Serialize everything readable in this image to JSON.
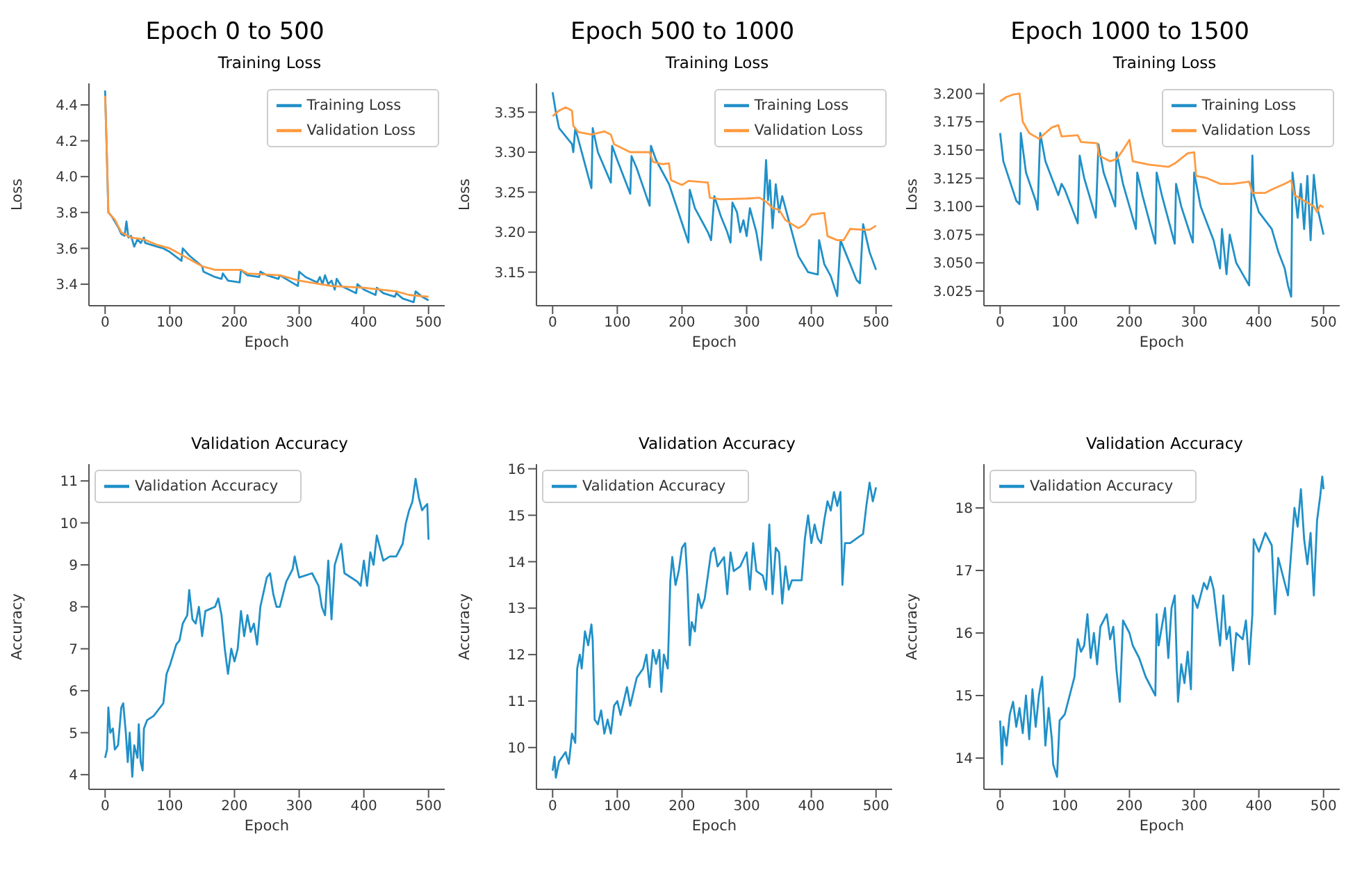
{
  "chart_data": [
    {
      "type": "line",
      "title": "Epoch 0 to 500",
      "subtitle": "Training Loss",
      "xlabel": "Epoch",
      "ylabel": "Loss",
      "xlim": [
        -25,
        525
      ],
      "xticks": [
        0,
        100,
        200,
        300,
        400,
        500
      ],
      "ylim": [
        3.28,
        4.52
      ],
      "yticks": [
        3.4,
        3.6,
        3.8,
        {
          "value": 4.0,
          "label": "4.0"
        },
        4.2,
        4.4
      ],
      "legend": "top right",
      "series": [
        {
          "name": "Training Loss",
          "color": "#2090c8",
          "x": [
            0,
            5,
            10,
            15,
            20,
            25,
            30,
            33,
            36,
            40,
            45,
            50,
            55,
            60,
            62,
            80,
            90,
            100,
            118,
            120,
            130,
            150,
            152,
            170,
            180,
            182,
            190,
            208,
            210,
            220,
            238,
            240,
            250,
            268,
            270,
            298,
            300,
            310,
            328,
            332,
            336,
            340,
            345,
            350,
            355,
            358,
            365,
            388,
            390,
            400,
            418,
            420,
            430,
            448,
            450,
            460,
            477,
            480,
            490,
            500
          ],
          "values": [
            4.48,
            3.8,
            3.78,
            3.75,
            3.72,
            3.68,
            3.67,
            3.75,
            3.66,
            3.67,
            3.61,
            3.65,
            3.63,
            3.66,
            3.63,
            3.61,
            3.6,
            3.58,
            3.53,
            3.6,
            3.56,
            3.5,
            3.47,
            3.44,
            3.43,
            3.46,
            3.42,
            3.41,
            3.48,
            3.45,
            3.44,
            3.47,
            3.45,
            3.43,
            3.45,
            3.39,
            3.47,
            3.44,
            3.41,
            3.44,
            3.4,
            3.45,
            3.4,
            3.42,
            3.37,
            3.43,
            3.39,
            3.35,
            3.4,
            3.37,
            3.34,
            3.38,
            3.35,
            3.33,
            3.35,
            3.32,
            3.3,
            3.36,
            3.33,
            3.31
          ]
        },
        {
          "name": "Validation Loss",
          "color": "#ff9a40",
          "x": [
            0,
            3,
            5,
            15,
            25,
            40,
            60,
            80,
            100,
            150,
            170,
            210,
            220,
            270,
            300,
            350,
            400,
            450,
            470,
            500
          ],
          "values": [
            4.45,
            4.1,
            3.8,
            3.76,
            3.69,
            3.66,
            3.65,
            3.62,
            3.6,
            3.5,
            3.48,
            3.48,
            3.46,
            3.45,
            3.42,
            3.39,
            3.38,
            3.36,
            3.34,
            3.33
          ]
        }
      ]
    },
    {
      "type": "line",
      "title": "Epoch 500 to 1000",
      "subtitle": "Training Loss",
      "xlabel": "Epoch",
      "ylabel": "Loss",
      "xlim": [
        -25,
        525
      ],
      "xticks": [
        0,
        100,
        200,
        300,
        400,
        500
      ],
      "ylim": [
        3.108,
        3.386
      ],
      "yticks": [
        3.15,
        {
          "value": 3.2,
          "label": "3.20"
        },
        3.25,
        {
          "value": 3.3,
          "label": "3.30"
        },
        3.35
      ],
      "legend": "top right",
      "series": [
        {
          "name": "Training Loss",
          "color": "#2090c8",
          "x": [
            0,
            5,
            10,
            20,
            30,
            32,
            35,
            60,
            62,
            70,
            90,
            92,
            100,
            120,
            122,
            130,
            150,
            152,
            160,
            180,
            210,
            212,
            220,
            240,
            245,
            250,
            260,
            270,
            275,
            278,
            285,
            290,
            295,
            300,
            305,
            315,
            322,
            325,
            330,
            333,
            336,
            340,
            345,
            350,
            355,
            380,
            395,
            410,
            412,
            420,
            430,
            440,
            445,
            455,
            470,
            475,
            480,
            490,
            500
          ],
          "values": [
            3.375,
            3.35,
            3.33,
            3.32,
            3.31,
            3.3,
            3.33,
            3.255,
            3.33,
            3.3,
            3.262,
            3.308,
            3.29,
            3.248,
            3.295,
            3.28,
            3.233,
            3.308,
            3.29,
            3.26,
            3.187,
            3.253,
            3.23,
            3.2,
            3.19,
            3.245,
            3.22,
            3.2,
            3.187,
            3.237,
            3.225,
            3.2,
            3.215,
            3.195,
            3.23,
            3.2,
            3.165,
            3.21,
            3.29,
            3.24,
            3.265,
            3.205,
            3.26,
            3.225,
            3.245,
            3.17,
            3.15,
            3.147,
            3.19,
            3.16,
            3.145,
            3.12,
            3.19,
            3.17,
            3.14,
            3.136,
            3.21,
            3.175,
            3.153
          ]
        },
        {
          "name": "Validation Loss",
          "color": "#ff9a40",
          "x": [
            0,
            10,
            20,
            30,
            32,
            40,
            60,
            80,
            90,
            95,
            120,
            150,
            155,
            170,
            180,
            183,
            200,
            210,
            240,
            243,
            260,
            300,
            320,
            330,
            340,
            350,
            360,
            380,
            390,
            400,
            420,
            425,
            440,
            450,
            460,
            480,
            490,
            500
          ],
          "values": [
            3.345,
            3.352,
            3.356,
            3.352,
            3.333,
            3.325,
            3.322,
            3.326,
            3.322,
            3.31,
            3.3,
            3.3,
            3.288,
            3.285,
            3.286,
            3.265,
            3.259,
            3.264,
            3.262,
            3.243,
            3.241,
            3.242,
            3.243,
            3.238,
            3.23,
            3.228,
            3.215,
            3.205,
            3.21,
            3.222,
            3.224,
            3.195,
            3.19,
            3.19,
            3.204,
            3.203,
            3.203,
            3.208
          ]
        }
      ]
    },
    {
      "type": "line",
      "title": "Epoch 1000 to 1500",
      "subtitle": "Training Loss",
      "xlabel": "Epoch",
      "ylabel": "Loss",
      "xlim": [
        -25,
        525
      ],
      "xticks": [
        0,
        100,
        200,
        300,
        400,
        500
      ],
      "ylim": [
        3.012,
        3.209
      ],
      "yticks": [
        3.025,
        {
          "value": 3.05,
          "label": "3.050"
        },
        3.075,
        {
          "value": 3.1,
          "label": "3.100"
        },
        3.125,
        {
          "value": 3.15,
          "label": "3.150"
        },
        3.175,
        {
          "value": 3.2,
          "label": "3.200"
        }
      ],
      "legend": "top right",
      "series": [
        {
          "name": "Training Loss",
          "color": "#2090c8",
          "x": [
            0,
            5,
            25,
            30,
            32,
            40,
            55,
            58,
            62,
            70,
            90,
            95,
            100,
            120,
            123,
            130,
            148,
            152,
            160,
            178,
            180,
            190,
            210,
            212,
            220,
            240,
            242,
            250,
            270,
            272,
            280,
            298,
            300,
            310,
            320,
            330,
            340,
            343,
            350,
            355,
            365,
            380,
            385,
            390,
            392,
            400,
            420,
            430,
            440,
            445,
            450,
            452,
            460,
            465,
            470,
            475,
            480,
            485,
            490,
            500
          ],
          "values": [
            3.165,
            3.14,
            3.105,
            3.102,
            3.165,
            3.13,
            3.105,
            3.097,
            3.165,
            3.14,
            3.11,
            3.12,
            3.115,
            3.085,
            3.145,
            3.125,
            3.09,
            3.155,
            3.13,
            3.1,
            3.148,
            3.12,
            3.08,
            3.13,
            3.11,
            3.067,
            3.13,
            3.11,
            3.067,
            3.12,
            3.1,
            3.068,
            3.13,
            3.1,
            3.085,
            3.07,
            3.045,
            3.08,
            3.04,
            3.075,
            3.05,
            3.035,
            3.03,
            3.145,
            3.11,
            3.095,
            3.08,
            3.06,
            3.045,
            3.03,
            3.02,
            3.13,
            3.09,
            3.12,
            3.08,
            3.127,
            3.07,
            3.128,
            3.1,
            3.075
          ]
        },
        {
          "name": "Validation Loss",
          "color": "#ff9a40",
          "x": [
            0,
            10,
            20,
            30,
            35,
            45,
            60,
            70,
            80,
            90,
            95,
            120,
            125,
            150,
            153,
            170,
            180,
            190,
            200,
            205,
            230,
            260,
            270,
            290,
            300,
            303,
            320,
            340,
            360,
            385,
            390,
            410,
            420,
            440,
            450,
            455,
            470,
            485,
            490,
            495,
            500
          ],
          "values": [
            3.193,
            3.197,
            3.199,
            3.2,
            3.175,
            3.165,
            3.16,
            3.165,
            3.17,
            3.172,
            3.162,
            3.163,
            3.157,
            3.156,
            3.145,
            3.14,
            3.142,
            3.15,
            3.159,
            3.14,
            3.137,
            3.135,
            3.138,
            3.147,
            3.148,
            3.127,
            3.125,
            3.12,
            3.12,
            3.122,
            3.112,
            3.112,
            3.115,
            3.12,
            3.123,
            3.11,
            3.105,
            3.1,
            3.095,
            3.101,
            3.099
          ]
        }
      ]
    },
    {
      "type": "line",
      "title": "Validation Accuracy",
      "xlabel": "Epoch",
      "ylabel": "Accuracy",
      "xlim": [
        -25,
        525
      ],
      "xticks": [
        0,
        100,
        200,
        300,
        400,
        500
      ],
      "ylim": [
        3.65,
        11.4
      ],
      "yticks": [
        4,
        5,
        6,
        7,
        8,
        9,
        10,
        11
      ],
      "legend": "top left",
      "series": [
        {
          "name": "Validation Accuracy",
          "color": "#2090c8",
          "x": [
            0,
            3,
            5,
            8,
            12,
            15,
            20,
            25,
            28,
            32,
            35,
            38,
            42,
            45,
            50,
            52,
            55,
            58,
            60,
            65,
            75,
            85,
            90,
            95,
            100,
            110,
            115,
            120,
            127,
            130,
            135,
            140,
            145,
            150,
            155,
            170,
            175,
            180,
            185,
            190,
            195,
            200,
            205,
            210,
            215,
            220,
            225,
            230,
            235,
            240,
            250,
            255,
            260,
            265,
            270,
            280,
            290,
            293,
            300,
            320,
            330,
            335,
            340,
            345,
            350,
            355,
            365,
            370,
            380,
            390,
            395,
            400,
            405,
            410,
            415,
            420,
            430,
            440,
            450,
            460,
            465,
            470,
            475,
            480,
            485,
            490,
            495,
            498,
            500
          ],
          "values": [
            4.4,
            4.6,
            5.6,
            5.0,
            5.1,
            4.6,
            4.7,
            5.6,
            5.7,
            5.0,
            4.3,
            5.0,
            3.95,
            4.7,
            4.4,
            5.2,
            4.3,
            4.1,
            5.1,
            5.3,
            5.4,
            5.6,
            5.7,
            6.4,
            6.6,
            7.1,
            7.2,
            7.6,
            7.8,
            8.4,
            7.7,
            7.6,
            8.0,
            7.3,
            7.9,
            8.0,
            8.2,
            7.8,
            7.0,
            6.4,
            7.0,
            6.7,
            7.0,
            7.9,
            7.3,
            7.8,
            7.4,
            7.6,
            7.1,
            8.0,
            8.7,
            8.8,
            8.3,
            8.0,
            8.0,
            8.6,
            8.9,
            9.2,
            8.7,
            8.8,
            8.5,
            8.0,
            7.8,
            9.1,
            7.7,
            9.0,
            9.5,
            8.8,
            8.7,
            8.6,
            8.5,
            9.1,
            8.5,
            9.3,
            9.0,
            9.7,
            9.1,
            9.2,
            9.2,
            9.5,
            10.0,
            10.3,
            10.5,
            11.05,
            10.6,
            10.3,
            10.4,
            10.45,
            9.6
          ]
        }
      ]
    },
    {
      "type": "line",
      "title": "Validation Accuracy",
      "xlabel": "Epoch",
      "ylabel": "Accuracy",
      "xlim": [
        -25,
        525
      ],
      "xticks": [
        0,
        100,
        200,
        300,
        400,
        500
      ],
      "ylim": [
        9.1,
        16.1
      ],
      "yticks": [
        10,
        11,
        12,
        13,
        14,
        15,
        16
      ],
      "legend": "top left",
      "series": [
        {
          "name": "Validation Accuracy",
          "color": "#2090c8",
          "x": [
            0,
            3,
            5,
            10,
            20,
            25,
            30,
            35,
            38,
            42,
            45,
            50,
            55,
            60,
            62,
            65,
            70,
            75,
            80,
            85,
            90,
            95,
            100,
            105,
            110,
            115,
            120,
            130,
            140,
            145,
            150,
            155,
            160,
            165,
            168,
            172,
            178,
            182,
            185,
            190,
            195,
            200,
            205,
            208,
            212,
            215,
            220,
            225,
            230,
            235,
            245,
            250,
            255,
            265,
            270,
            275,
            280,
            290,
            300,
            305,
            310,
            315,
            325,
            330,
            335,
            340,
            345,
            350,
            355,
            360,
            365,
            370,
            385,
            390,
            395,
            400,
            405,
            410,
            415,
            420,
            425,
            430,
            435,
            440,
            445,
            448,
            452,
            460,
            470,
            480,
            485,
            490,
            495,
            500
          ],
          "values": [
            9.5,
            9.8,
            9.35,
            9.7,
            9.9,
            9.65,
            10.3,
            10.1,
            11.7,
            12.0,
            11.7,
            12.5,
            12.2,
            12.65,
            12.3,
            10.6,
            10.5,
            10.8,
            10.3,
            10.6,
            10.3,
            10.9,
            11.0,
            10.7,
            11.0,
            11.3,
            10.9,
            11.5,
            11.7,
            12.0,
            11.3,
            12.1,
            11.8,
            12.1,
            11.2,
            12.0,
            11.7,
            13.6,
            14.1,
            13.5,
            13.8,
            14.3,
            14.4,
            13.7,
            12.2,
            12.7,
            12.5,
            13.3,
            13.0,
            13.2,
            14.2,
            14.3,
            13.9,
            14.1,
            13.3,
            14.2,
            13.8,
            13.9,
            14.2,
            13.4,
            14.4,
            13.8,
            13.7,
            13.4,
            14.8,
            13.3,
            14.3,
            14.2,
            13.1,
            13.9,
            13.4,
            13.6,
            13.6,
            14.5,
            15.0,
            14.4,
            14.8,
            14.5,
            14.4,
            14.9,
            15.3,
            15.1,
            15.5,
            15.2,
            15.5,
            13.5,
            14.4,
            14.4,
            14.5,
            14.6,
            15.2,
            15.7,
            15.3,
            15.6
          ]
        }
      ]
    },
    {
      "type": "line",
      "title": "Validation Accuracy",
      "xlabel": "Epoch",
      "ylabel": "Accuracy",
      "xlim": [
        -25,
        525
      ],
      "xticks": [
        0,
        100,
        200,
        300,
        400,
        500
      ],
      "ylim": [
        13.5,
        18.7
      ],
      "yticks": [
        14,
        15,
        16,
        17,
        18
      ],
      "legend": "top left",
      "series": [
        {
          "name": "Validation Accuracy",
          "color": "#2090c8",
          "x": [
            0,
            3,
            5,
            10,
            15,
            20,
            25,
            30,
            35,
            40,
            45,
            50,
            55,
            60,
            65,
            70,
            75,
            80,
            82,
            88,
            92,
            100,
            110,
            115,
            120,
            125,
            130,
            135,
            140,
            145,
            150,
            155,
            165,
            170,
            175,
            180,
            185,
            190,
            200,
            205,
            215,
            225,
            235,
            240,
            242,
            245,
            255,
            260,
            265,
            270,
            275,
            280,
            285,
            290,
            295,
            298,
            305,
            315,
            320,
            325,
            330,
            340,
            345,
            350,
            355,
            360,
            365,
            375,
            380,
            385,
            390,
            392,
            400,
            410,
            420,
            425,
            430,
            440,
            445,
            450,
            455,
            460,
            465,
            470,
            475,
            480,
            485,
            490,
            495,
            498,
            500
          ],
          "values": [
            14.6,
            13.9,
            14.5,
            14.2,
            14.7,
            14.9,
            14.5,
            14.8,
            14.4,
            15.0,
            14.3,
            15.1,
            14.5,
            15.0,
            15.3,
            14.2,
            14.8,
            14.3,
            13.9,
            13.7,
            14.6,
            14.7,
            15.1,
            15.3,
            15.9,
            15.7,
            15.8,
            16.3,
            15.6,
            16.0,
            15.5,
            16.1,
            16.3,
            15.9,
            16.1,
            15.4,
            14.9,
            16.2,
            16.0,
            15.8,
            15.6,
            15.3,
            15.1,
            15.0,
            16.3,
            15.8,
            16.4,
            15.6,
            16.4,
            16.6,
            14.9,
            15.5,
            15.2,
            15.7,
            15.1,
            16.6,
            16.4,
            16.8,
            16.7,
            16.9,
            16.7,
            15.8,
            16.6,
            15.9,
            16.1,
            15.4,
            16.0,
            15.9,
            16.2,
            15.5,
            16.3,
            17.5,
            17.3,
            17.6,
            17.4,
            16.3,
            17.2,
            16.8,
            16.6,
            17.3,
            18.0,
            17.7,
            18.3,
            17.5,
            17.1,
            17.6,
            16.6,
            17.8,
            18.2,
            18.5,
            18.3
          ]
        }
      ]
    }
  ]
}
